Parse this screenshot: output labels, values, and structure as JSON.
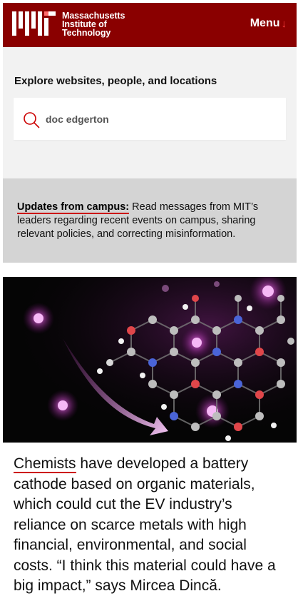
{
  "header": {
    "logo_line1": "Massachusetts",
    "logo_line2": "Institute of",
    "logo_line3": "Technology",
    "menu_label": "Menu",
    "menu_arrow": "↓",
    "bg_color": "#8a0000"
  },
  "search": {
    "label": "Explore websites, people, and locations",
    "value": "doc edgerton",
    "icon": "search-icon"
  },
  "updates": {
    "link_label": "Updates from campus:",
    "text": " Read messages from MIT’s leaders regarding recent events on campus, sharing relevant policies, and correcting misinformation."
  },
  "story": {
    "link_label": "Chemists",
    "text": " have developed a battery cathode based on organic materials, which could cut the EV industry’s reliance on scarce metals with high financial, environmental, and social costs. “I think this material could have a big impact,” says Mircea Dincă."
  },
  "colors": {
    "accent": "#c00000",
    "updates_bg": "#d4d4d4",
    "search_bg": "#f2f2f2"
  }
}
